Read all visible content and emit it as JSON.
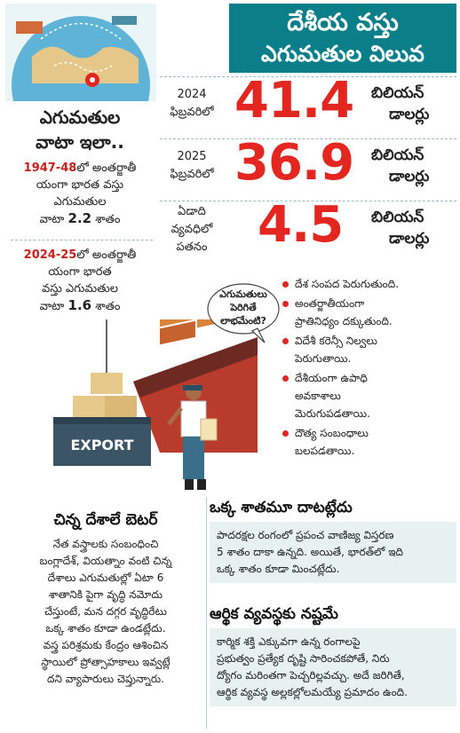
{
  "header": {
    "title_line1": "దేశీయ వస్తు",
    "title_line2": "ఎగుమతుల విలువ"
  },
  "stats": [
    {
      "label_line1": "2024",
      "label_line2": "ఫిబ్రవరిలో",
      "value": "41.4",
      "unit_line1": "బిలియన్",
      "unit_line2": "డాలర్లు"
    },
    {
      "label_line1": "2025",
      "label_line2": "ఫిబ్రవరిలో",
      "value": "36.9",
      "unit_line1": "బిలియన్",
      "unit_line2": "డాలర్లు"
    },
    {
      "label_line1": "ఏడాది",
      "label_line2": "వ్యవధిలో",
      "label_line3": "పతనం",
      "value": "4.5",
      "unit_line1": "బిలియన్",
      "unit_line2": "డాలర్లు"
    }
  ],
  "share": {
    "title_line1": "ఎగుమతుల",
    "title_line2": "వాటా ఇలా..",
    "items": [
      {
        "period": "1947-48",
        "text1": "లో అంతర్జాతీ",
        "text2": "యంగా భారత వస్తు",
        "text3": "ఎగుమతుల",
        "text4_pre": "వాటా",
        "value": "2.2",
        "text4_post": "శాతం"
      },
      {
        "period": "2024-25",
        "text1": "లో అంతర్జాతీ",
        "text2": "యంగా భారత",
        "text3": "వస్తు ఎగుమతుల",
        "text4_pre": "వాటా",
        "value": "1.6",
        "text4_post": "శాతం"
      }
    ]
  },
  "bubble": {
    "line1": "ఎగుమతులు",
    "line2": "పెరిగితే",
    "line3": "లాభమేంటి?"
  },
  "benefits": [
    [
      "దేశ సంపద పెరుగుతుంది."
    ],
    [
      "అంతర్జాతీయంగా",
      "ప్రాతినిధ్యం దక్కుతుంది."
    ],
    [
      "విదేశీ కరెన్సీ నిల్వలు",
      "పెరుగుతాయి."
    ],
    [
      "దేశీయంగా ఉపాధి",
      "అవకాశాలు",
      "మెరుగుపడతాయి."
    ],
    [
      "దౌత్య సంబంధాలు",
      "బలపడతాయి."
    ]
  ],
  "illustration": {
    "crate_label": "EXPORT"
  },
  "sections": {
    "small_countries": {
      "heading": "చిన్న దేశాలే బెటర్",
      "lines": [
        "నేత వస్త్రాలకు సంబంధించి",
        "బంగ్లాదేశ్, వియత్నాం వంటి చిన్న",
        "దేశాలు ఎగుమతుల్లో ఏటా 6",
        "శాతానికి పైగా వృద్ధి నమోదు",
        "చేస్తుంటే, మన దగ్గర వృద్ధిరేటు",
        "ఒక్క శాతం కూడా ఉండట్లేదు.",
        "వస్త్ర పరిశ్రమకు కేంద్రం ఆశించిన",
        "స్థాయిలో ప్రోత్సాహకాలు ఇవ్వట్లే",
        "దని వ్యాపారులు చెప్తున్నారు."
      ]
    },
    "one_percent": {
      "heading": "ఒక్క శాతమూ దాటట్లేదు",
      "lines": [
        "పాదరక్షల రంగంలో ప్రపంచ వాణిజ్య విస్తరణ",
        "5 శాతం దాకా ఉన్నది. అయితే, భారత్‌లో ఇది",
        "ఒక్క శాతం కూడా మించట్లేదు."
      ]
    },
    "economy_loss": {
      "heading": "ఆర్థిక వ్యవస్థకు నష్టమే",
      "lines": [
        "కార్మిక శక్తి ఎక్కువగా ఉన్న రంగాలపై",
        "ప్రభుత్వం ప్రత్యేక దృష్టి సారించకపోతే, నిరు",
        "ద్యోగం మరింతగా పెచ్చరిల్లవచ్చు. అదే జరిగితే,",
        "ఆర్థిక వ్యవస్థ అల్లకల్లోలమయ్యే ప్రమాదం ఉంది."
      ]
    }
  },
  "colors": {
    "accent_teal": "#0a7f8a",
    "number_red": "#e32620",
    "box_tint": "#e7f1f2"
  }
}
